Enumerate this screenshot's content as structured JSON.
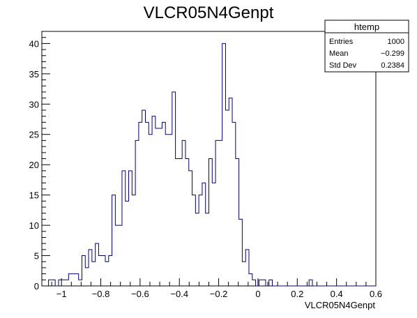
{
  "chart_data": {
    "type": "histogram",
    "title": "VLCR05N4Genpt",
    "xlabel": "VLCR05N4Genpt",
    "ylabel": "",
    "xlim": [
      -1.1,
      0.6
    ],
    "ylim": [
      0,
      42
    ],
    "bin_width": 0.017,
    "line_color": "#000080",
    "x_ticks": [
      -1,
      -0.8,
      -0.6,
      -0.4,
      -0.2,
      0,
      0.2,
      0.4,
      0.6
    ],
    "x_tick_labels": [
      "−1",
      "−0.8",
      "−0.6",
      "−0.4",
      "−0.2",
      "0",
      "0.2",
      "0.4",
      "0.6"
    ],
    "y_ticks": [
      0,
      5,
      10,
      15,
      20,
      25,
      30,
      35,
      40
    ],
    "y_tick_labels": [
      "0",
      "5",
      "10",
      "15",
      "20",
      "25",
      "30",
      "35",
      "40"
    ],
    "counts": [
      0,
      0,
      1,
      1,
      0,
      1,
      1,
      1,
      2,
      2,
      2,
      1,
      5,
      3,
      6,
      4,
      7,
      5,
      5,
      4,
      5,
      15,
      10,
      10,
      19,
      14,
      19,
      15,
      24,
      27,
      29,
      27,
      25,
      28,
      26,
      26,
      27,
      25,
      25,
      32,
      21,
      21,
      24,
      21,
      19,
      15,
      12,
      15,
      17,
      12,
      21,
      17,
      24,
      24,
      40,
      29,
      31,
      27,
      21,
      11,
      4,
      6,
      2,
      1,
      0,
      1,
      1,
      0,
      1,
      0,
      0,
      0,
      0,
      0,
      0,
      0,
      0,
      0,
      0,
      0,
      1,
      0,
      0,
      0,
      0,
      0,
      0,
      0,
      0,
      0,
      0,
      0,
      0,
      0,
      0,
      0,
      0,
      0,
      0,
      0
    ],
    "stats": {
      "name": "htemp",
      "rows": [
        {
          "label": "Entries",
          "value": "1000"
        },
        {
          "label": "Mean",
          "value": "−0.299"
        },
        {
          "label": "Std Dev",
          "value": "0.2384"
        }
      ]
    }
  }
}
